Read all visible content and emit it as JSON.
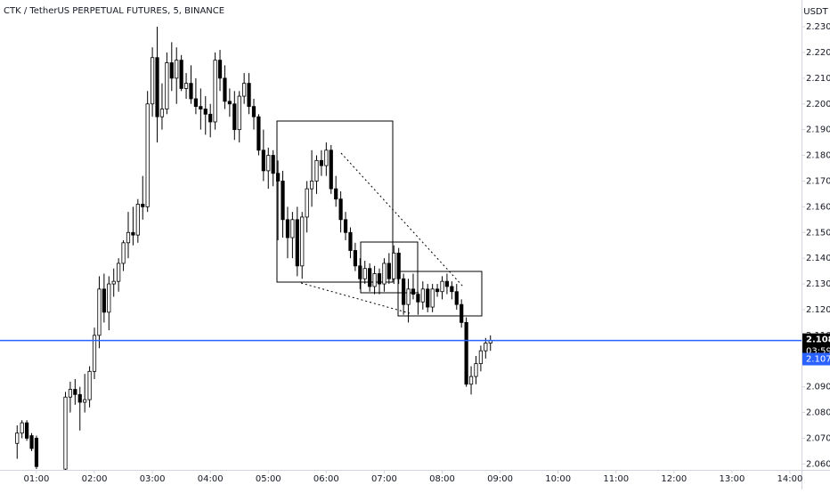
{
  "chart_data": {
    "type": "candlestick",
    "title": "CTK / TetherUS PERPETUAL FUTURES, 5, BINANCE",
    "currency": "USDT",
    "open": [
      2.068,
      2.072,
      2.076,
      2.071,
      2.07,
      null,
      null,
      null,
      null,
      null,
      2.058,
      2.086,
      2.089,
      2.087,
      2.084,
      2.085,
      2.096,
      2.11,
      2.128,
      2.119,
      2.13,
      2.131,
      2.138,
      2.146,
      2.15,
      2.149,
      2.161,
      2.16,
      2.2,
      2.218,
      2.195,
      2.198,
      2.216,
      2.21,
      2.217,
      2.206,
      2.208,
      2.202,
      2.199,
      2.198,
      2.196,
      2.193,
      2.217,
      2.21,
      2.201,
      2.2,
      2.19,
      2.203,
      2.208,
      2.199,
      2.195,
      2.182,
      2.174,
      2.18,
      2.173,
      2.17,
      2.155,
      2.148,
      2.155,
      2.137,
      2.156,
      2.167,
      2.17,
      2.178,
      2.176,
      2.182,
      2.167,
      2.163,
      2.155,
      2.15,
      2.143,
      2.137,
      2.132,
      2.136,
      2.129,
      2.134,
      2.13,
      2.138,
      2.132,
      2.142,
      2.132,
      2.122,
      2.128,
      2.126,
      2.123,
      2.128,
      2.121,
      2.128,
      2.127,
      2.131,
      2.129,
      2.127,
      2.122,
      2.115,
      2.091,
      2.094,
      2.099,
      2.104,
      2.107
    ],
    "high": [
      2.075,
      2.077,
      2.077,
      2.072,
      2.071,
      null,
      null,
      null,
      null,
      null,
      2.088,
      2.092,
      2.093,
      2.09,
      2.095,
      2.098,
      2.113,
      2.133,
      2.134,
      2.133,
      2.136,
      2.14,
      2.147,
      2.158,
      2.16,
      2.163,
      2.172,
      2.205,
      2.222,
      2.23,
      2.208,
      2.22,
      2.224,
      2.222,
      2.219,
      2.212,
      2.215,
      2.21,
      2.206,
      2.203,
      2.2,
      2.22,
      2.221,
      2.215,
      2.206,
      2.205,
      2.205,
      2.212,
      2.212,
      2.202,
      2.196,
      2.19,
      2.183,
      2.182,
      2.178,
      2.174,
      2.16,
      2.158,
      2.16,
      2.158,
      2.17,
      2.182,
      2.18,
      2.182,
      2.185,
      2.184,
      2.172,
      2.166,
      2.158,
      2.152,
      2.146,
      2.14,
      2.139,
      2.138,
      2.137,
      2.136,
      2.14,
      2.142,
      2.145,
      2.144,
      2.134,
      2.132,
      2.134,
      2.127,
      2.131,
      2.13,
      2.13,
      2.13,
      2.133,
      2.134,
      2.131,
      2.13,
      2.124,
      2.117,
      2.098,
      2.102,
      2.106,
      2.109,
      2.11
    ],
    "low": [
      2.062,
      2.07,
      2.069,
      2.065,
      2.058,
      null,
      null,
      null,
      null,
      null,
      2.057,
      2.08,
      2.083,
      2.073,
      2.08,
      2.082,
      2.093,
      2.105,
      2.115,
      2.112,
      2.125,
      2.127,
      2.135,
      2.14,
      2.145,
      2.146,
      2.155,
      2.158,
      2.195,
      2.185,
      2.19,
      2.196,
      2.205,
      2.2,
      2.205,
      2.202,
      2.2,
      2.196,
      2.19,
      2.188,
      2.187,
      2.19,
      2.205,
      2.198,
      2.195,
      2.186,
      2.185,
      2.2,
      2.196,
      2.19,
      2.18,
      2.17,
      2.167,
      2.168,
      2.147,
      2.148,
      2.14,
      2.14,
      2.133,
      2.132,
      2.15,
      2.16,
      2.165,
      2.172,
      2.172,
      2.165,
      2.16,
      2.15,
      2.147,
      2.14,
      2.135,
      2.128,
      2.13,
      2.127,
      2.126,
      2.126,
      2.127,
      2.13,
      2.13,
      2.13,
      2.118,
      2.115,
      2.124,
      2.118,
      2.12,
      2.119,
      2.119,
      2.125,
      2.124,
      2.126,
      2.124,
      2.12,
      2.113,
      2.09,
      2.087,
      2.091,
      2.096,
      2.101,
      2.104
    ],
    "close": [
      2.072,
      2.076,
      2.07,
      2.066,
      2.059,
      null,
      null,
      null,
      null,
      null,
      2.086,
      2.089,
      2.087,
      2.084,
      2.085,
      2.096,
      2.11,
      2.128,
      2.119,
      2.13,
      2.131,
      2.138,
      2.146,
      2.15,
      2.149,
      2.161,
      2.16,
      2.2,
      2.218,
      2.195,
      2.198,
      2.216,
      2.21,
      2.217,
      2.206,
      2.208,
      2.202,
      2.199,
      2.198,
      2.196,
      2.193,
      2.217,
      2.21,
      2.201,
      2.2,
      2.19,
      2.203,
      2.208,
      2.199,
      2.195,
      2.182,
      2.174,
      2.18,
      2.173,
      2.17,
      2.155,
      2.148,
      2.155,
      2.137,
      2.156,
      2.167,
      2.17,
      2.178,
      2.176,
      2.182,
      2.167,
      2.163,
      2.155,
      2.15,
      2.143,
      2.137,
      2.132,
      2.136,
      2.129,
      2.134,
      2.13,
      2.138,
      2.132,
      2.142,
      2.132,
      2.122,
      2.128,
      2.126,
      2.123,
      2.128,
      2.121,
      2.128,
      2.127,
      2.131,
      2.129,
      2.127,
      2.122,
      2.115,
      2.091,
      2.094,
      2.099,
      2.104,
      2.107,
      2.108
    ],
    "up_color": "#ffffff",
    "down_color": "#000000",
    "wick_color": "#000000",
    "xlim": [
      -3.55,
      162.4
    ],
    "xticks": [
      {
        "value": 4,
        "label": "01:00"
      },
      {
        "value": 16,
        "label": "02:00"
      },
      {
        "value": 28,
        "label": "03:00"
      },
      {
        "value": 40,
        "label": "04:00"
      },
      {
        "value": 52,
        "label": "05:00"
      },
      {
        "value": 64,
        "label": "06:00"
      },
      {
        "value": 76,
        "label": "07:00"
      },
      {
        "value": 88,
        "label": "08:00"
      },
      {
        "value": 100,
        "label": "09:00"
      },
      {
        "value": 112,
        "label": "10:00"
      },
      {
        "value": 124,
        "label": "11:00"
      },
      {
        "value": 136,
        "label": "12:00"
      },
      {
        "value": 148,
        "label": "13:00"
      },
      {
        "value": 160,
        "label": "14:00"
      }
    ],
    "ylim": [
      2.0577,
      2.2404
    ],
    "yticks": [
      {
        "value": 2.06,
        "label": "2.060"
      },
      {
        "value": 2.07,
        "label": "2.070"
      },
      {
        "value": 2.08,
        "label": "2.080"
      },
      {
        "value": 2.09,
        "label": "2.090"
      },
      {
        "value": 2.1,
        "label": "2.100"
      },
      {
        "value": 2.11,
        "label": "2.110"
      },
      {
        "value": 2.12,
        "label": "2.120"
      },
      {
        "value": 2.13,
        "label": "2.130"
      },
      {
        "value": 2.14,
        "label": "2.140"
      },
      {
        "value": 2.15,
        "label": "2.150"
      },
      {
        "value": 2.16,
        "label": "2.160"
      },
      {
        "value": 2.17,
        "label": "2.170"
      },
      {
        "value": 2.18,
        "label": "2.180"
      },
      {
        "value": 2.19,
        "label": "2.190"
      },
      {
        "value": 2.2,
        "label": "2.200"
      },
      {
        "value": 2.21,
        "label": "2.210"
      },
      {
        "value": 2.22,
        "label": "2.220"
      },
      {
        "value": 2.23,
        "label": "2.230"
      }
    ],
    "price_line": 2.108,
    "price_line_color": "#2962ff",
    "countdown": "03:59",
    "bid": 2.107
  }
}
